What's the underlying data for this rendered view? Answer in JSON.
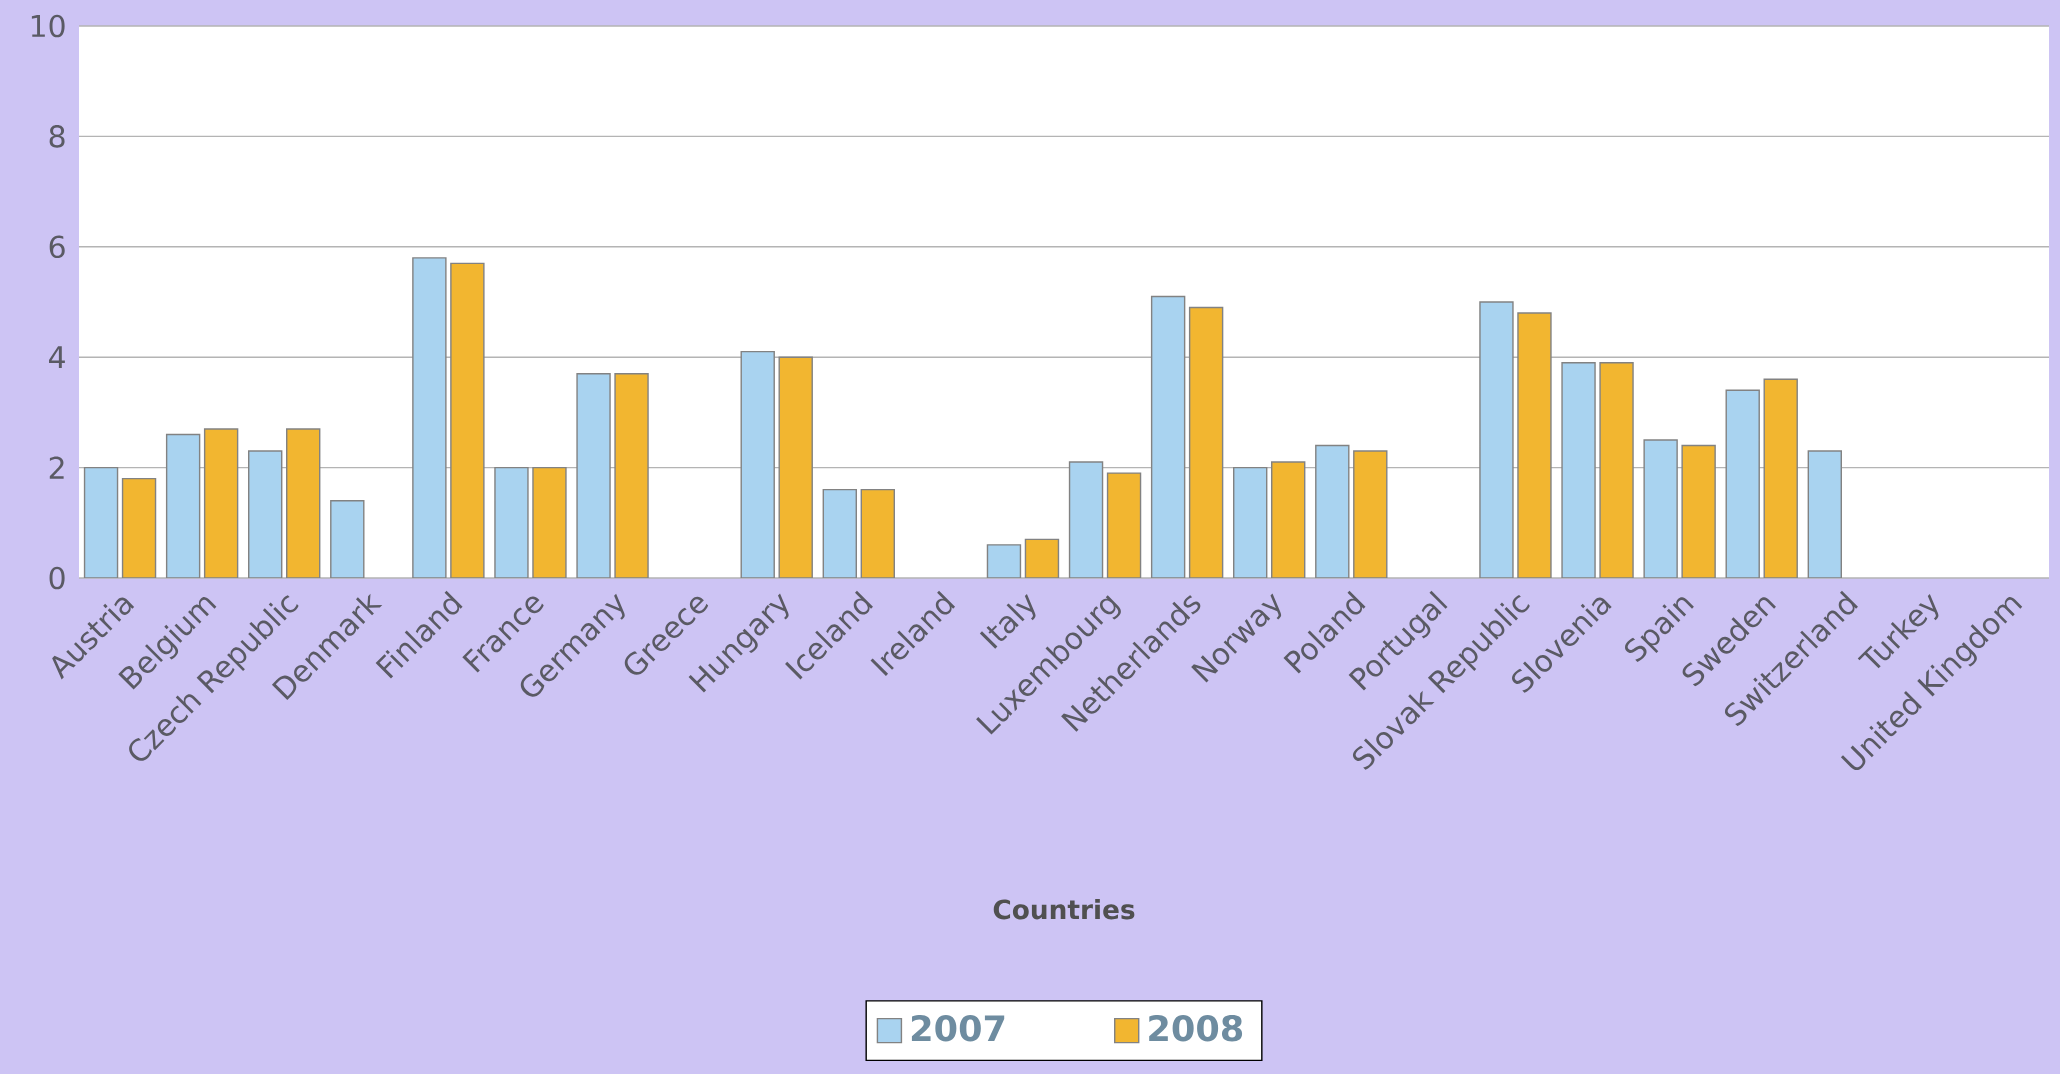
{
  "chart_data": {
    "type": "bar",
    "xlabel": "Countries",
    "categories": [
      "Austria",
      "Belgium",
      "Czech Republic",
      "Denmark",
      "Finland",
      "France",
      "Germany",
      "Greece",
      "Hungary",
      "Iceland",
      "Ireland",
      "Italy",
      "Luxembourg",
      "Netherlands",
      "Norway",
      "Poland",
      "Portugal",
      "Slovak Republic",
      "Slovenia",
      "Spain",
      "Sweden",
      "Switzerland",
      "Turkey",
      "United Kingdom"
    ],
    "series": [
      {
        "name": "2007",
        "color": "#a9d3f0",
        "values": [
          2.0,
          2.6,
          2.3,
          1.4,
          5.8,
          2.0,
          3.7,
          null,
          4.1,
          1.6,
          null,
          0.6,
          2.1,
          5.1,
          2.0,
          2.4,
          null,
          5.0,
          3.9,
          2.5,
          3.4,
          2.3,
          null,
          null
        ]
      },
      {
        "name": "2008",
        "color": "#f2b630",
        "values": [
          1.8,
          2.7,
          2.7,
          null,
          5.7,
          2.0,
          3.7,
          null,
          4.0,
          1.6,
          null,
          0.7,
          1.9,
          4.9,
          2.1,
          2.3,
          null,
          4.8,
          3.9,
          2.4,
          3.6,
          null,
          null,
          null
        ]
      }
    ],
    "ylim": [
      0,
      10
    ],
    "yticks": [
      0,
      2,
      4,
      6,
      8,
      10
    ],
    "grid": "y",
    "legend": "bottom"
  }
}
